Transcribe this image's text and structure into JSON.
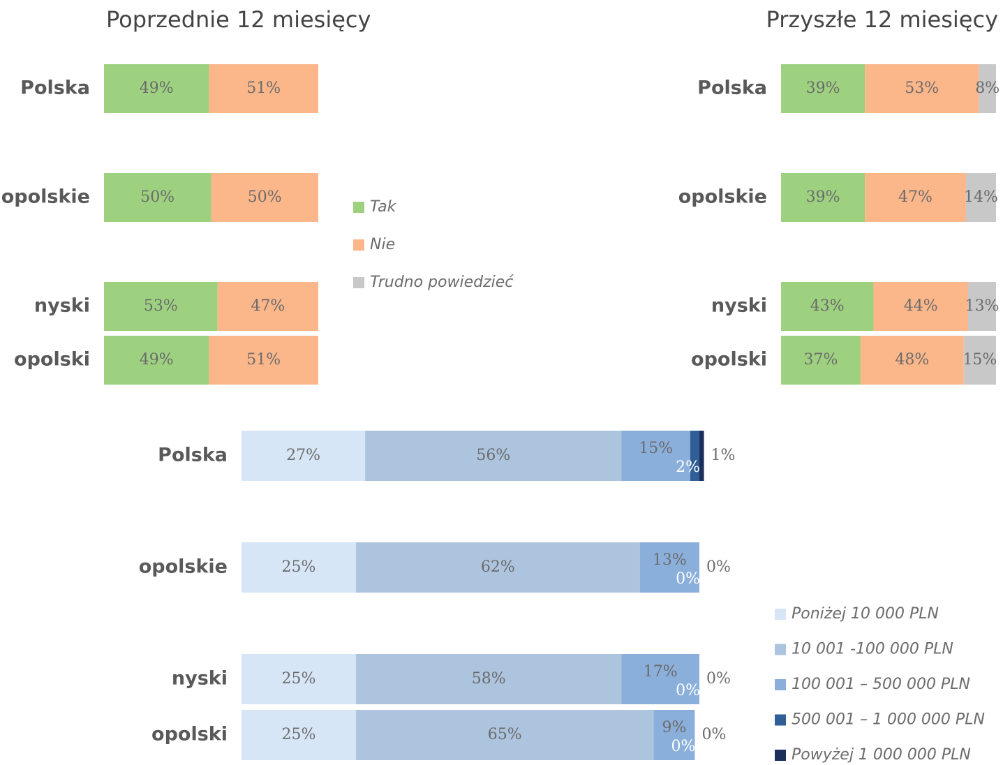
{
  "chart_data": [
    {
      "type": "stacked-bar",
      "title": "Poprzednie 12 miesięcy",
      "categories": [
        "Polska",
        "opolskie",
        "nyski",
        "opolski"
      ],
      "series": [
        {
          "color": "#9dd180",
          "values": [
            49,
            50,
            53,
            49
          ],
          "value_labels": [
            "49%",
            "50%",
            "53%",
            "49%"
          ]
        },
        {
          "color": "#fbb68a",
          "values": [
            51,
            50,
            47,
            51
          ],
          "value_labels": [
            "51%",
            "50%",
            "47%",
            "51%"
          ]
        }
      ]
    },
    {
      "type": "stacked-bar",
      "title": "Przyszłe 12 miesięcy",
      "categories": [
        "Polska",
        "opolskie",
        "nyski",
        "opolski"
      ],
      "series": [
        {
          "name": "Tak",
          "color": "#9dd180",
          "values": [
            39,
            39,
            43,
            37
          ],
          "value_labels": [
            "39%",
            "39%",
            "43%",
            "37%"
          ]
        },
        {
          "name": "Nie",
          "color": "#fbb68a",
          "values": [
            53,
            47,
            44,
            48
          ],
          "value_labels": [
            "53%",
            "47%",
            "44%",
            "48%"
          ]
        },
        {
          "name": "Trudno powiedzieć",
          "color": "#c8c8c8",
          "values": [
            8,
            14,
            13,
            15
          ],
          "value_labels": [
            "8%",
            "14%",
            "13%",
            "15%"
          ]
        }
      ]
    },
    {
      "type": "stacked-bar",
      "categories": [
        "Polska",
        "opolskie",
        "nyski",
        "opolski"
      ],
      "series": [
        {
          "name": "Poniżej 10 000 PLN",
          "color": "#d7e6f6",
          "values": [
            27,
            25,
            25,
            25
          ],
          "value_labels": [
            "27%",
            "25%",
            "25%",
            "25%"
          ]
        },
        {
          "name": "10 001 -100 000 PLN",
          "color": "#adc4de",
          "values": [
            56,
            62,
            58,
            65
          ],
          "value_labels": [
            "56%",
            "62%",
            "58%",
            "65%"
          ]
        },
        {
          "name": "100 001 – 500 000 PLN",
          "color": "#8bafdb",
          "values": [
            15,
            13,
            17,
            9
          ],
          "value_labels": [
            "15%",
            "13%",
            "17%",
            "9%"
          ]
        },
        {
          "name": "500 001 – 1 000 000 PLN",
          "color": "#2f5f96",
          "values": [
            2,
            0,
            0,
            0
          ],
          "value_labels": [
            "2%",
            "0%",
            "0%",
            "0%"
          ]
        },
        {
          "name": "Powyżej 1 000 000 PLN",
          "color": "#1c2f5a",
          "values": [
            1,
            0,
            0,
            0
          ],
          "value_labels": [
            "1%",
            "0%",
            "0%",
            "0%"
          ]
        }
      ]
    }
  ]
}
